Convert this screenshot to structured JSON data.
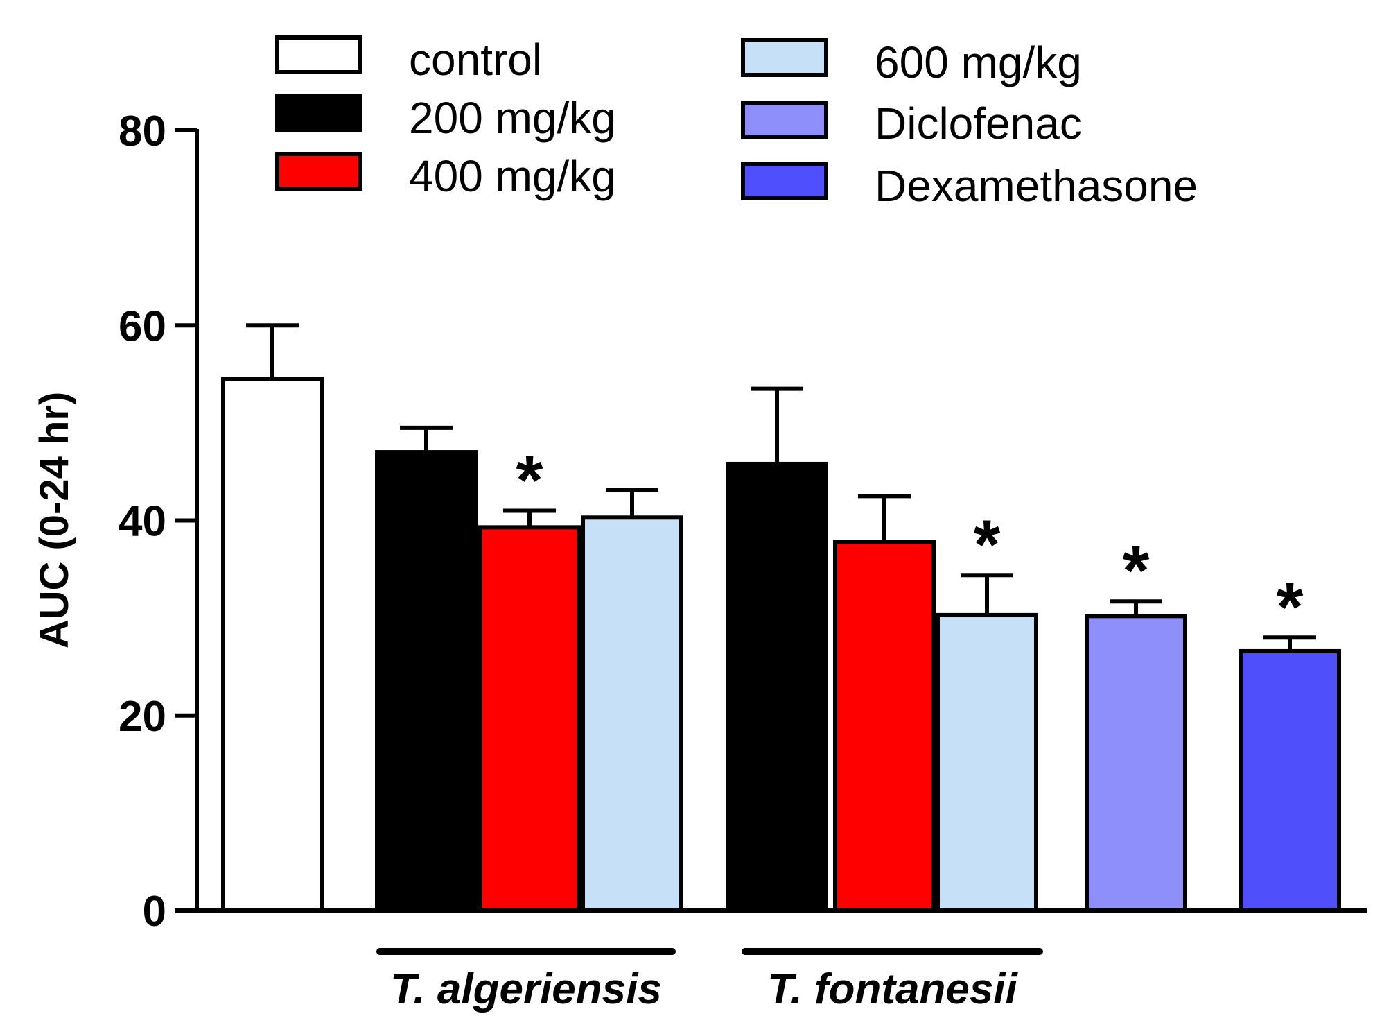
{
  "chart_data": {
    "type": "bar",
    "title": "",
    "xlabel": "",
    "ylabel": "AUC (0-24 hr)",
    "ylim": [
      0,
      80
    ],
    "yticks": [
      0,
      20,
      40,
      60,
      80
    ],
    "grid": false,
    "legend_position": "top",
    "series": [
      {
        "name": "control",
        "color": "#ffffff"
      },
      {
        "name": "200 mg/kg",
        "color": "#000000"
      },
      {
        "name": "400 mg/kg",
        "color": "#ff0000"
      },
      {
        "name": "600 mg/kg",
        "color": "#c5e0f7"
      },
      {
        "name": "Diclofenac",
        "color": "#8f8ffc"
      },
      {
        "name": "Dexamethasone",
        "color": "#4f4ffc"
      }
    ],
    "bars": [
      {
        "group": "control",
        "series": "control",
        "value": 54.5,
        "error": 5.5,
        "significant": false
      },
      {
        "group": "T. algeriensis",
        "series": "200 mg/kg",
        "value": 47.0,
        "error": 2.5,
        "significant": false
      },
      {
        "group": "T. algeriensis",
        "series": "400 mg/kg",
        "value": 39.3,
        "error": 1.7,
        "significant": true
      },
      {
        "group": "T. algeriensis",
        "series": "600 mg/kg",
        "value": 40.3,
        "error": 2.8,
        "significant": false
      },
      {
        "group": "T. fontanesii",
        "series": "200 mg/kg",
        "value": 45.8,
        "error": 7.7,
        "significant": false
      },
      {
        "group": "T. fontanesii",
        "series": "400 mg/kg",
        "value": 37.8,
        "error": 4.7,
        "significant": false
      },
      {
        "group": "T. fontanesii",
        "series": "600 mg/kg",
        "value": 30.3,
        "error": 4.1,
        "significant": true
      },
      {
        "group": "Diclofenac",
        "series": "Diclofenac",
        "value": 30.2,
        "error": 1.5,
        "significant": true
      },
      {
        "group": "Dexamethasone",
        "series": "Dexamethasone",
        "value": 26.6,
        "error": 1.4,
        "significant": true
      }
    ],
    "group_labels": [
      "T. algeriensis",
      "T. fontanesii"
    ],
    "significance_marker": "*"
  }
}
